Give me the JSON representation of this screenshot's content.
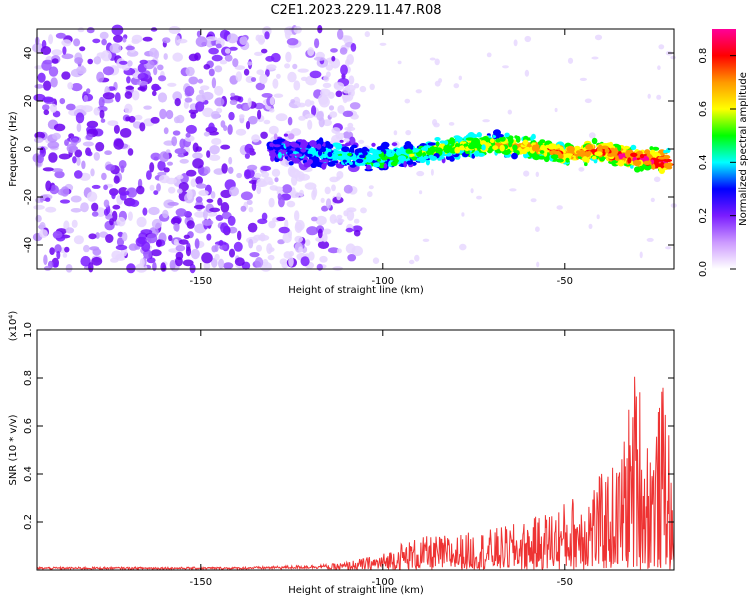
{
  "title": "C2E1.2023.229.11.47.R08",
  "chart_data": [
    {
      "type": "heatmap",
      "xlabel": "Height of straight line (km)",
      "ylabel": "Frequency (Hz)",
      "xlim": [
        -195,
        -20
      ],
      "ylim": [
        -50,
        50
      ],
      "xticks": [
        -150,
        -100,
        -50
      ],
      "yticks": [
        40,
        20,
        0,
        -20,
        -40
      ],
      "colorbar": {
        "label": "Normalized spectral amplitude",
        "range": [
          0,
          0.9
        ],
        "ticks": [
          0.0,
          0.2,
          0.4,
          0.6,
          0.8
        ],
        "colormap": [
          "#ffffff",
          "#cc99ff",
          "#7a1cff",
          "#0000ff",
          "#00ffff",
          "#00ff00",
          "#ffff00",
          "#ff9900",
          "#ff0000",
          "#ff0099"
        ]
      },
      "signal_ridge": {
        "x": [
          -130,
          -115,
          -100,
          -90,
          -80,
          -70,
          -60,
          -50,
          -40,
          -30,
          -22
        ],
        "y": [
          0,
          -2,
          -4,
          -2,
          1,
          2,
          1,
          -2,
          -1,
          -4,
          -5
        ]
      },
      "noise_region_x": [
        -195,
        -115
      ]
    },
    {
      "type": "line",
      "xlabel": "Height of straight line (km)",
      "ylabel": "SNR (10 * v/v)",
      "yscale_label": "(x10⁴)",
      "xlim": [
        -195,
        -20
      ],
      "ylim": [
        0,
        1.0
      ],
      "xticks": [
        -150,
        -100,
        -50
      ],
      "yticks": [
        0.2,
        0.4,
        0.6,
        0.8,
        1.0
      ],
      "series": [
        {
          "color": "#ee3333",
          "x": [
            -195,
            -180,
            -160,
            -140,
            -125,
            -115,
            -110,
            -100,
            -95,
            -90,
            -80,
            -70,
            -60,
            -50,
            -45,
            -40,
            -35,
            -30,
            -28,
            -25,
            -22,
            -20
          ],
          "y": [
            0.01,
            0.01,
            0.01,
            0.01,
            0.015,
            0.02,
            0.03,
            0.06,
            0.1,
            0.12,
            0.13,
            0.15,
            0.18,
            0.25,
            0.3,
            0.35,
            0.4,
            0.8,
            0.5,
            0.55,
            0.75,
            0.05
          ]
        }
      ]
    }
  ]
}
